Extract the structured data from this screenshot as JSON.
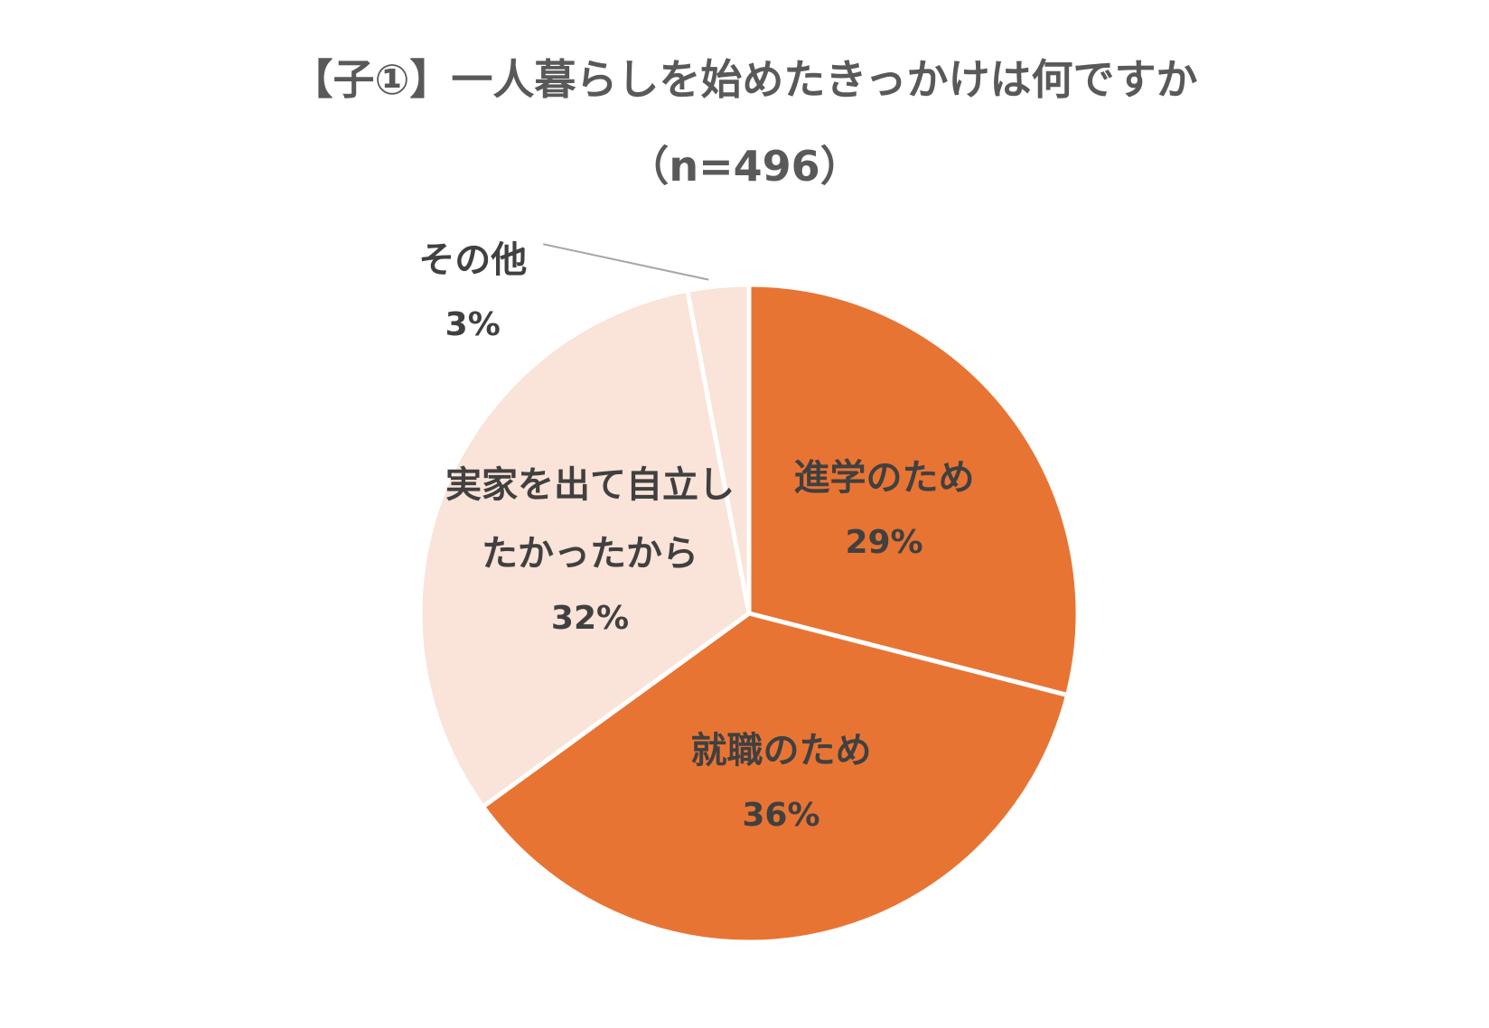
{
  "chart_data": {
    "type": "pie",
    "title": "【子①】一人暮らしを始めたきっかけは何ですか",
    "subtitle": "（n=496）",
    "categories": [
      "進学のため",
      "就職のため",
      "実家を出て自立したかったから",
      "その他"
    ],
    "values": [
      29,
      36,
      32,
      3
    ],
    "value_labels": [
      "29%",
      "36%",
      "32%",
      "3%"
    ],
    "colors": [
      "#e87434",
      "#e87434",
      "#fae3d8",
      "#fae3d8"
    ]
  }
}
